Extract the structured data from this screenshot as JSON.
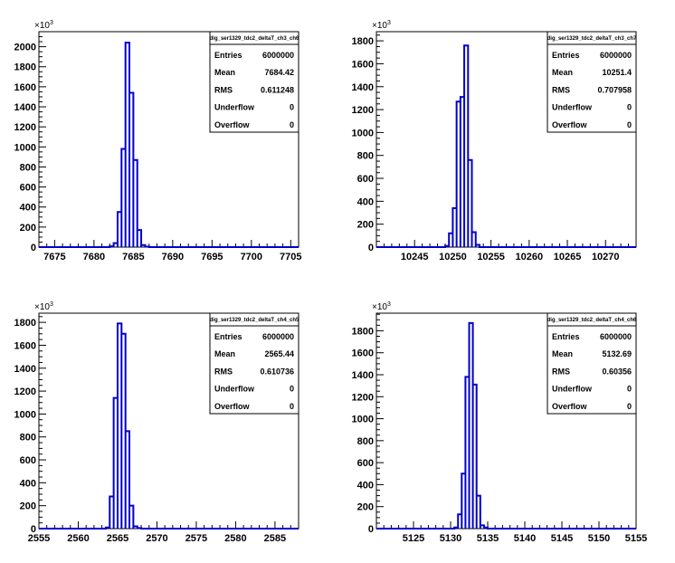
{
  "colors": {
    "histogram": "#0000cc",
    "axis": "#000000",
    "background": "#ffffff"
  },
  "exponent_label": "×10",
  "exponent_power": "3",
  "chart_data": [
    {
      "type": "bar",
      "name": "dig_ser1329_tdc2_deltaT_ch3_ch6",
      "stats": {
        "labels": [
          "Entries",
          "Mean",
          "RMS",
          "Underflow",
          "Overflow"
        ],
        "values": [
          "6000000",
          "7684.42",
          "0.611248",
          "0",
          "0"
        ]
      },
      "xlim": [
        7673,
        7706
      ],
      "ylim": [
        0,
        2150
      ],
      "x_ticks": [
        7675,
        7680,
        7685,
        7690,
        7695,
        7700,
        7705
      ],
      "y_ticks": [
        0,
        200,
        400,
        600,
        800,
        1000,
        1200,
        1400,
        1600,
        1800,
        2000
      ],
      "bins": [
        {
          "x0": 7682.0,
          "x1": 7682.5,
          "y": 8
        },
        {
          "x0": 7682.5,
          "x1": 7683.0,
          "y": 40
        },
        {
          "x0": 7683.0,
          "x1": 7683.5,
          "y": 350
        },
        {
          "x0": 7683.5,
          "x1": 7684.0,
          "y": 980
        },
        {
          "x0": 7684.0,
          "x1": 7684.5,
          "y": 2040
        },
        {
          "x0": 7684.5,
          "x1": 7685.0,
          "y": 1540
        },
        {
          "x0": 7685.0,
          "x1": 7685.5,
          "y": 870
        },
        {
          "x0": 7685.5,
          "x1": 7686.0,
          "y": 170
        },
        {
          "x0": 7686.0,
          "x1": 7686.5,
          "y": 20
        },
        {
          "x0": 7686.5,
          "x1": 7687.0,
          "y": 5
        }
      ]
    },
    {
      "type": "bar",
      "name": "dig_ser1329_tdc2_deltaT_ch3_ch7",
      "stats": {
        "labels": [
          "Entries",
          "Mean",
          "RMS",
          "Underflow",
          "Overflow"
        ],
        "values": [
          "6000000",
          "10251.4",
          "0.707958",
          "0",
          "0"
        ]
      },
      "xlim": [
        10240,
        10274
      ],
      "ylim": [
        0,
        1880
      ],
      "x_ticks": [
        10245,
        10250,
        10255,
        10260,
        10265,
        10270
      ],
      "y_ticks": [
        0,
        200,
        400,
        600,
        800,
        1000,
        1200,
        1400,
        1600,
        1800
      ],
      "bins": [
        {
          "x0": 10249.0,
          "x1": 10249.5,
          "y": 10
        },
        {
          "x0": 10249.5,
          "x1": 10250.0,
          "y": 120
        },
        {
          "x0": 10250.0,
          "x1": 10250.5,
          "y": 340
        },
        {
          "x0": 10250.5,
          "x1": 10251.0,
          "y": 1270
        },
        {
          "x0": 10251.0,
          "x1": 10251.5,
          "y": 1310
        },
        {
          "x0": 10251.5,
          "x1": 10252.0,
          "y": 1760
        },
        {
          "x0": 10252.0,
          "x1": 10252.5,
          "y": 760
        },
        {
          "x0": 10252.5,
          "x1": 10253.0,
          "y": 130
        },
        {
          "x0": 10253.0,
          "x1": 10253.5,
          "y": 20
        }
      ]
    },
    {
      "type": "bar",
      "name": "dig_ser1329_tdc2_deltaT_ch4_ch5",
      "stats": {
        "labels": [
          "Entries",
          "Mean",
          "RMS",
          "Underflow",
          "Overflow"
        ],
        "values": [
          "6000000",
          "2565.44",
          "0.610736",
          "0",
          "0"
        ]
      },
      "xlim": [
        2555,
        2588
      ],
      "ylim": [
        0,
        1880
      ],
      "x_ticks": [
        2555,
        2560,
        2565,
        2570,
        2575,
        2580,
        2585
      ],
      "y_ticks": [
        0,
        200,
        400,
        600,
        800,
        1000,
        1200,
        1400,
        1600,
        1800
      ],
      "bins": [
        {
          "x0": 2563.5,
          "x1": 2564.0,
          "y": 10
        },
        {
          "x0": 2564.0,
          "x1": 2564.5,
          "y": 280
        },
        {
          "x0": 2564.5,
          "x1": 2565.0,
          "y": 1140
        },
        {
          "x0": 2565.0,
          "x1": 2565.5,
          "y": 1790
        },
        {
          "x0": 2565.5,
          "x1": 2566.0,
          "y": 1700
        },
        {
          "x0": 2566.0,
          "x1": 2566.5,
          "y": 850
        },
        {
          "x0": 2566.5,
          "x1": 2567.0,
          "y": 200
        },
        {
          "x0": 2567.0,
          "x1": 2567.5,
          "y": 20
        },
        {
          "x0": 2567.5,
          "x1": 2568.0,
          "y": 5
        }
      ]
    },
    {
      "type": "bar",
      "name": "dig_ser1329_tdc2_deltaT_ch4_ch6",
      "stats": {
        "labels": [
          "Entries",
          "Mean",
          "RMS",
          "Underflow",
          "Overflow"
        ],
        "values": [
          "6000000",
          "5132.69",
          "0.60356",
          "0",
          "0"
        ]
      },
      "xlim": [
        5120,
        5155
      ],
      "ylim": [
        0,
        1960
      ],
      "x_ticks": [
        5125,
        5130,
        5135,
        5140,
        5145,
        5150,
        5155
      ],
      "y_ticks": [
        0,
        200,
        400,
        600,
        800,
        1000,
        1200,
        1400,
        1600,
        1800
      ],
      "bins": [
        {
          "x0": 5130.5,
          "x1": 5131.0,
          "y": 10
        },
        {
          "x0": 5131.0,
          "x1": 5131.5,
          "y": 130
        },
        {
          "x0": 5131.5,
          "x1": 5132.0,
          "y": 500
        },
        {
          "x0": 5132.0,
          "x1": 5132.5,
          "y": 1380
        },
        {
          "x0": 5132.5,
          "x1": 5133.0,
          "y": 1870
        },
        {
          "x0": 5133.0,
          "x1": 5133.5,
          "y": 1310
        },
        {
          "x0": 5133.5,
          "x1": 5134.0,
          "y": 300
        },
        {
          "x0": 5134.0,
          "x1": 5134.5,
          "y": 30
        },
        {
          "x0": 5134.5,
          "x1": 5135.0,
          "y": 10
        }
      ]
    }
  ]
}
